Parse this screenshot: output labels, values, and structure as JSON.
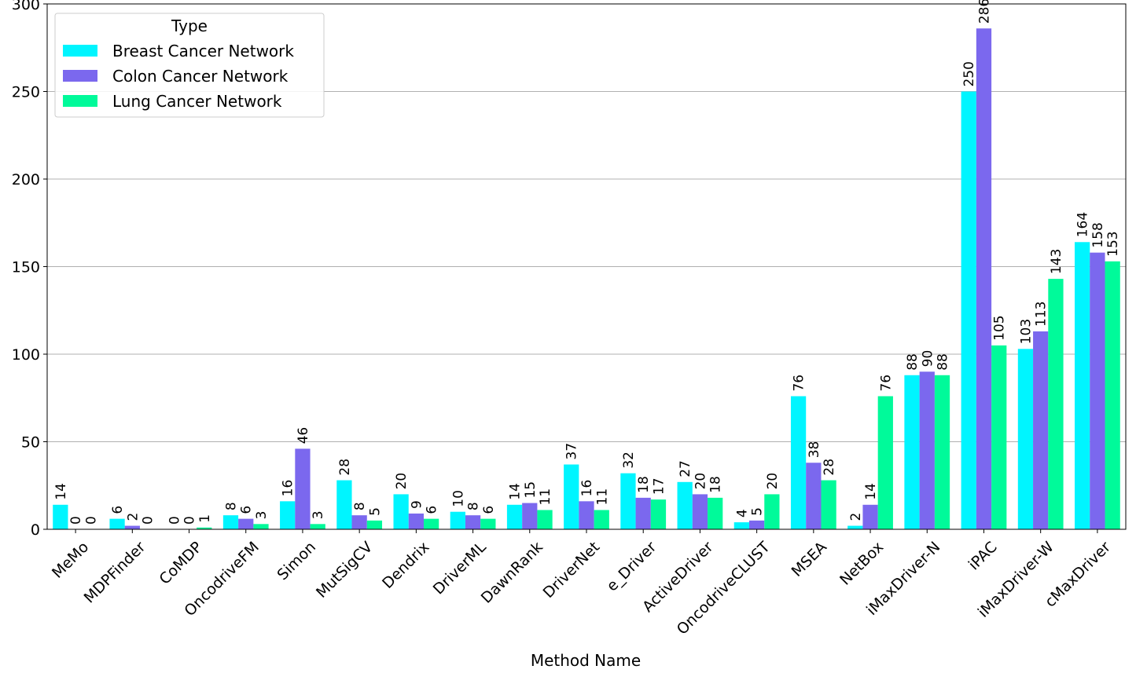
{
  "chart_data": {
    "type": "bar",
    "title": "",
    "xlabel": "Method Name",
    "ylabel": "",
    "ylim": [
      0,
      300
    ],
    "yticks": [
      0,
      50,
      100,
      150,
      200,
      250,
      300
    ],
    "grid": "horizontal",
    "legend_title": "Type",
    "legend_position": "top-left",
    "categories": [
      "MeMo",
      "MDPFinder",
      "CoMDP",
      "OncodriveFM",
      "Simon",
      "MutSigCV",
      "Dendrix",
      "DriverML",
      "DawnRank",
      "DriverNet",
      "e_Driver",
      "ActiveDriver",
      "OncodriveCLUST",
      "MSEA",
      "NetBox",
      "iMaxDriver-N",
      "iPAC",
      "iMaxDriver-W",
      "cMaxDriver"
    ],
    "series": [
      {
        "name": "Breast Cancer Network",
        "color": "#00f5ff",
        "values": [
          14,
          6,
          0,
          8,
          16,
          28,
          20,
          10,
          14,
          37,
          32,
          27,
          4,
          76,
          2,
          88,
          250,
          103,
          164
        ]
      },
      {
        "name": "Colon Cancer Network",
        "color": "#7b68ee",
        "values": [
          0,
          2,
          0,
          6,
          46,
          8,
          9,
          8,
          15,
          16,
          18,
          20,
          5,
          38,
          14,
          90,
          286,
          113,
          158
        ]
      },
      {
        "name": "Lung Cancer Network",
        "color": "#00fa9a",
        "values": [
          0,
          0,
          1,
          3,
          3,
          5,
          6,
          6,
          11,
          11,
          17,
          18,
          20,
          28,
          76,
          88,
          105,
          143,
          153
        ]
      }
    ]
  }
}
